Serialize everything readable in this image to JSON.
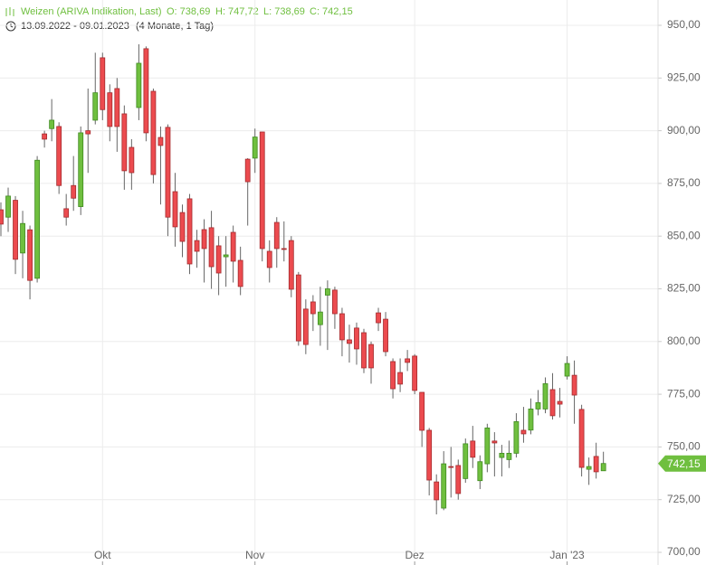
{
  "chart_data": {
    "type": "candlestick",
    "title": "Weizen (ARIVA Indikation, Last)",
    "ohlc_labels": [
      "O: 738,69",
      "H: 747,72",
      "L: 738,69",
      "C: 742,15"
    ],
    "period": "13.09.2022 - 09.01.2023",
    "period_note": "(4 Monate, 1 Tag)",
    "categories": [
      null,
      null,
      null,
      null,
      null,
      null,
      null,
      null,
      null,
      null,
      null,
      null,
      null,
      null,
      "Okt",
      null,
      null,
      null,
      null,
      null,
      null,
      null,
      null,
      null,
      null,
      null,
      null,
      null,
      null,
      null,
      null,
      null,
      null,
      null,
      null,
      "Nov",
      null,
      null,
      null,
      null,
      null,
      null,
      null,
      null,
      null,
      null,
      null,
      null,
      null,
      null,
      null,
      null,
      null,
      null,
      null,
      null,
      null,
      "Dez",
      null,
      null,
      null,
      null,
      null,
      null,
      null,
      null,
      null,
      null,
      null,
      null,
      null,
      null,
      null,
      null,
      null,
      null,
      null,
      null,
      "Jan '23",
      null,
      null,
      null,
      null,
      null
    ],
    "series": {
      "open": [
        862.5,
        859,
        867,
        842,
        853,
        830,
        898.5,
        901,
        902,
        863,
        874,
        864,
        900,
        905,
        934.6,
        918,
        920,
        908,
        892.1,
        911,
        938.9,
        918.7,
        896.8,
        901.6,
        871.1,
        861.2,
        867.7,
        847.9,
        853.1,
        854,
        845.4,
        840.2,
        851.8,
        838.5,
        886.5,
        887,
        899.4,
        842.8,
        856.5,
        844.1,
        847.9,
        831.6,
        815.4,
        818.8,
        808,
        822,
        824.4,
        813.2,
        800.8,
        806.4,
        804.2,
        798.6,
        813.6,
        810.6,
        790.5,
        785.3,
        791.8,
        793.1,
        775.9,
        757.9,
        733.4,
        721,
        740.7,
        741.2,
        735,
        752.8,
        734,
        742,
        752.8,
        745,
        744,
        747,
        757.9,
        758,
        768,
        768,
        777.2,
        771.6,
        783.6,
        784,
        767.8,
        739.4,
        745.5,
        738.69
      ],
      "high": [
        866,
        873,
        869,
        862,
        855,
        888,
        900,
        915,
        904,
        870,
        888,
        902,
        920,
        937,
        937,
        922,
        925,
        912,
        896,
        941,
        940,
        920,
        902,
        903,
        880,
        865,
        870,
        853,
        858,
        862,
        850,
        850,
        855,
        845,
        887,
        901,
        899.5,
        848,
        859,
        857,
        850,
        833,
        820,
        822,
        826,
        829,
        826,
        816,
        808,
        809,
        806,
        800,
        816,
        814,
        792,
        792,
        796,
        794,
        776,
        759,
        737,
        748,
        750,
        744,
        754,
        760,
        746,
        761,
        757,
        751,
        753,
        766,
        769,
        773,
        777,
        783,
        785,
        778,
        793,
        791,
        770,
        745,
        752,
        747.72
      ],
      "low": [
        850,
        852,
        832,
        830,
        820,
        828,
        892,
        895,
        870,
        855,
        862,
        860,
        880,
        903,
        905,
        895,
        890,
        872,
        872,
        905,
        895,
        875,
        865,
        850,
        845,
        840,
        832,
        835,
        828,
        825,
        822,
        826,
        828,
        822,
        855,
        880,
        838,
        828,
        835,
        838,
        821,
        798,
        794,
        805,
        798,
        796,
        806,
        793,
        790,
        789,
        785,
        780,
        805,
        793,
        773,
        776,
        786,
        775,
        750,
        727,
        718,
        720,
        726,
        725,
        733,
        740,
        730,
        738,
        736,
        736,
        740,
        745,
        752,
        756,
        765,
        766,
        763,
        764,
        782,
        761,
        736,
        732,
        735,
        738.69
      ],
      "close": [
        855.7,
        869,
        839,
        856,
        829,
        886,
        896,
        905,
        874,
        859,
        868,
        899,
        898.5,
        918,
        910,
        902,
        902,
        881,
        880.1,
        932,
        899,
        879.2,
        893,
        859,
        854.4,
        847.5,
        836.8,
        842.8,
        844.1,
        835.5,
        832.5,
        841.1,
        838.1,
        826.1,
        875.8,
        897,
        844.1,
        835.1,
        844.1,
        843.7,
        824.8,
        800.3,
        798.6,
        813.2,
        814,
        825,
        813.2,
        800.8,
        799.1,
        796.5,
        787.5,
        787.5,
        808.9,
        795.2,
        777.6,
        779.8,
        790.1,
        776.8,
        757.9,
        734.3,
        724.9,
        742,
        740.3,
        727.9,
        751.5,
        745.1,
        743,
        759,
        751.9,
        747,
        747,
        762,
        756.2,
        768,
        771,
        780,
        764.8,
        770.3,
        789.6,
        774.6,
        740.3,
        740.7,
        738.2,
        742.15
      ]
    },
    "up_color": "#6fbf3f",
    "down_color": "#ec4b4f",
    "last_price": {
      "value": 742.15,
      "label": "742,15"
    },
    "ylim": [
      700,
      950
    ],
    "yticks": [
      {
        "value": 700,
        "label": "700,00"
      },
      {
        "value": 725,
        "label": "725,00"
      },
      {
        "value": 750,
        "label": "750,00"
      },
      {
        "value": 775,
        "label": "775,00"
      },
      {
        "value": 800,
        "label": "800,00"
      },
      {
        "value": 825,
        "label": "825,00"
      },
      {
        "value": 850,
        "label": "850,00"
      },
      {
        "value": 875,
        "label": "875,00"
      },
      {
        "value": 900,
        "label": "900,00"
      },
      {
        "value": 925,
        "label": "925,00"
      },
      {
        "value": 950,
        "label": "950,00"
      }
    ],
    "grid": true
  }
}
